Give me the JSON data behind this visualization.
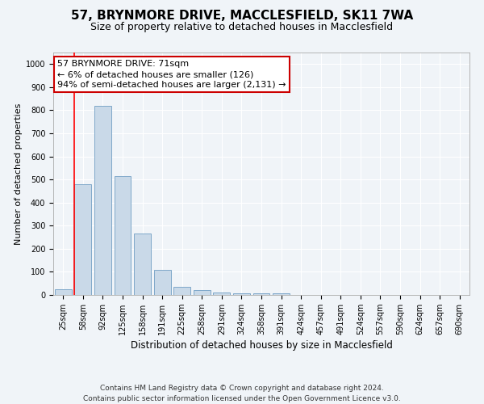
{
  "title": "57, BRYNMORE DRIVE, MACCLESFIELD, SK11 7WA",
  "subtitle": "Size of property relative to detached houses in Macclesfield",
  "xlabel": "Distribution of detached houses by size in Macclesfield",
  "ylabel": "Number of detached properties",
  "footnote1": "Contains HM Land Registry data © Crown copyright and database right 2024.",
  "footnote2": "Contains public sector information licensed under the Open Government Licence v3.0.",
  "categories": [
    "25sqm",
    "58sqm",
    "92sqm",
    "125sqm",
    "158sqm",
    "191sqm",
    "225sqm",
    "258sqm",
    "291sqm",
    "324sqm",
    "358sqm",
    "391sqm",
    "424sqm",
    "457sqm",
    "491sqm",
    "524sqm",
    "557sqm",
    "590sqm",
    "624sqm",
    "657sqm",
    "690sqm"
  ],
  "values": [
    25,
    480,
    820,
    515,
    265,
    110,
    35,
    20,
    10,
    7,
    7,
    7,
    0,
    0,
    0,
    0,
    0,
    0,
    0,
    0,
    0
  ],
  "bar_color": "#c9d9e8",
  "bar_edge_color": "#7fa8c9",
  "red_line_x": 1,
  "ylim": [
    0,
    1050
  ],
  "yticks": [
    0,
    100,
    200,
    300,
    400,
    500,
    600,
    700,
    800,
    900,
    1000
  ],
  "annotation_text": "57 BRYNMORE DRIVE: 71sqm\n← 6% of detached houses are smaller (126)\n94% of semi-detached houses are larger (2,131) →",
  "annotation_box_color": "#ffffff",
  "annotation_box_edge_color": "#cc0000",
  "bg_color": "#f0f4f8",
  "plot_bg_color": "#f0f4f8",
  "grid_color": "#ffffff",
  "title_fontsize": 11,
  "subtitle_fontsize": 9,
  "xlabel_fontsize": 8.5,
  "ylabel_fontsize": 8,
  "tick_fontsize": 7,
  "annotation_fontsize": 8,
  "footnote_fontsize": 6.5
}
